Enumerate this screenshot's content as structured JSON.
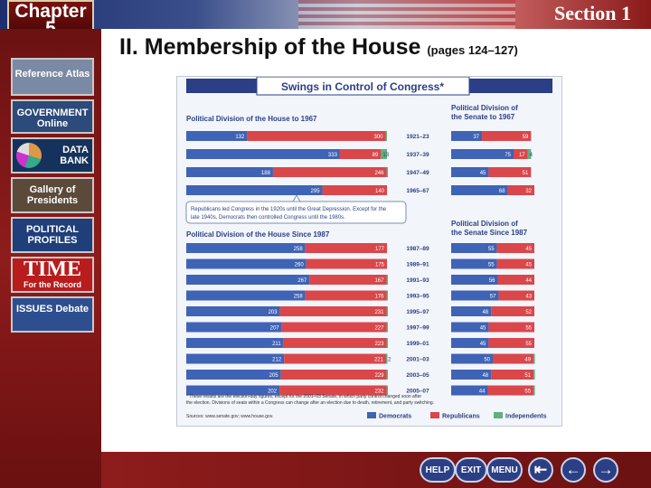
{
  "header": {
    "chapter_word": "Chapter",
    "chapter_number": "5",
    "section": "Section 1"
  },
  "sidebar": {
    "items": [
      {
        "label": "Reference Atlas"
      },
      {
        "label": "GOVERNMENT Online"
      },
      {
        "label": "DATA BANK"
      },
      {
        "label": "Gallery of Presidents"
      },
      {
        "label": "POLITICAL PROFILES"
      },
      {
        "label": "TIME",
        "sub": "For the Record"
      },
      {
        "label": "ISSUES Debate"
      }
    ]
  },
  "page": {
    "title": "II. Membership of the House",
    "pages": "(pages 124–127)"
  },
  "nav": {
    "help": "HELP",
    "exit": "EXIT",
    "menu": "MENU"
  },
  "colors": {
    "democrats": "#3f63b5",
    "republicans": "#d9474b",
    "independents": "#5fb07d",
    "header_band": "#2a3f86"
  },
  "chart_data": {
    "type": "bar",
    "title": "Swings in Control of Congress*",
    "house_to_1967": {
      "title": "Political Division of the House to 1967",
      "categories": [
        "1921–23",
        "1937–39",
        "1947–49",
        "1965–67"
      ],
      "series": [
        {
          "name": "Democrats",
          "values": [
            132,
            333,
            188,
            295
          ]
        },
        {
          "name": "Republicans",
          "values": [
            300,
            89,
            246,
            140
          ]
        },
        {
          "name": "Independents",
          "values": [
            1,
            13,
            1,
            0
          ]
        }
      ]
    },
    "senate_to_1967": {
      "title": "Political Division of the Senate to 1967",
      "series": [
        {
          "name": "Democrats",
          "values": [
            37,
            75,
            45,
            68
          ]
        },
        {
          "name": "Republicans",
          "values": [
            59,
            17,
            51,
            32
          ]
        },
        {
          "name": "Independents",
          "values": [
            0,
            4,
            0,
            0
          ]
        }
      ]
    },
    "annotation": "Republicans led Congress in the 1920s until the Great Depression. Except for the late 1940s, Democrats then controlled Congress until the 1980s.",
    "house_since_1987": {
      "title": "Political Division of the House Since 1987",
      "categories": [
        "1987–89",
        "1989–91",
        "1991–93",
        "1993–95",
        "1995–97",
        "1997–99",
        "1999–01",
        "2001–03",
        "2003–05",
        "2005–07"
      ],
      "series": [
        {
          "name": "Democrats",
          "values": [
            258,
            260,
            267,
            258,
            203,
            207,
            211,
            212,
            205,
            202
          ]
        },
        {
          "name": "Republicans",
          "values": [
            177,
            175,
            167,
            176,
            231,
            227,
            223,
            221,
            229,
            232
          ]
        },
        {
          "name": "Independents",
          "values": [
            0,
            0,
            1,
            1,
            1,
            1,
            1,
            2,
            1,
            1
          ]
        }
      ]
    },
    "senate_since_1987": {
      "title": "Political Division of the Senate Since 1987",
      "series": [
        {
          "name": "Democrats",
          "values": [
            55,
            55,
            56,
            57,
            48,
            45,
            45,
            50,
            48,
            44
          ]
        },
        {
          "name": "Republicans",
          "values": [
            45,
            45,
            44,
            43,
            52,
            55,
            55,
            49,
            51,
            55
          ]
        },
        {
          "name": "Independents",
          "values": [
            0,
            0,
            0,
            0,
            0,
            0,
            0,
            1,
            1,
            1
          ]
        }
      ]
    },
    "footnote": "* These results are the election-day figures, except for the 2001–03 Senate, in which party control changed soon after the election. Divisions of seats within a Congress can change after an election due to death, retirement, and party switching.",
    "source": "Sources: www.senate.gov; www.house.gov.",
    "legend": [
      "Democrats",
      "Republicans",
      "Independents"
    ]
  }
}
